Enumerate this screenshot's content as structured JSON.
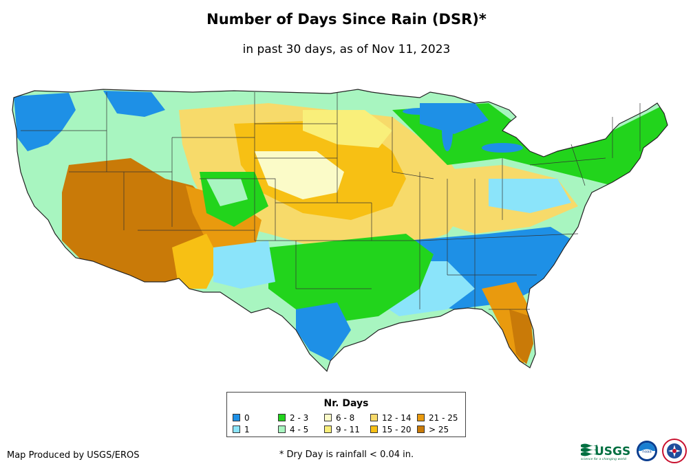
{
  "title": "Number of Days Since Rain (DSR)*",
  "subtitle": "in past 30 days, as of Nov 11, 2023",
  "legend": {
    "title": "Nr. Days",
    "items": [
      {
        "label": "0",
        "color": "#1e90e6"
      },
      {
        "label": "1",
        "color": "#8be4fa"
      },
      {
        "label": "2 - 3",
        "color": "#22d41c"
      },
      {
        "label": "4 - 5",
        "color": "#a8f5c0"
      },
      {
        "label": "6 - 8",
        "color": "#fbfbc8"
      },
      {
        "label": "9 - 11",
        "color": "#f9ef7a"
      },
      {
        "label": "12 - 14",
        "color": "#f7da6a"
      },
      {
        "label": "15 - 20",
        "color": "#f7c014"
      },
      {
        "label": "21 - 25",
        "color": "#e99a0e"
      },
      {
        "label": "> 25",
        "color": "#c97a08"
      }
    ]
  },
  "footer": {
    "credit": "Map Produced by USGS/EROS",
    "footnote": "* Dry Day is rainfall < 0.04 in.",
    "usgs_logo_text": "USGS",
    "usgs_tagline": "science for a changing world",
    "noaa_logo_text": "noaa"
  }
}
